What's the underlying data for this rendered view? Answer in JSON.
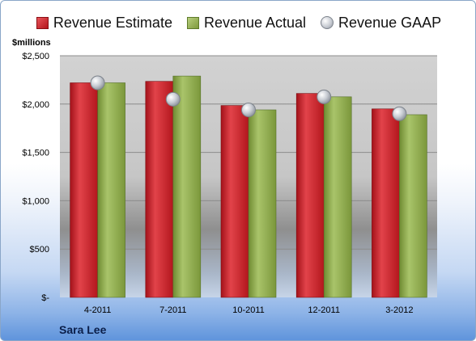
{
  "legend": {
    "estimate": "Revenue Estimate",
    "actual": "Revenue Actual",
    "gaap": "Revenue GAAP"
  },
  "unit_label": "$millions",
  "company": "Sara Lee",
  "colors": {
    "estimate": "#c9252b",
    "actual": "#8eab4f",
    "gaap": "#c0c4cc",
    "plot_bg": "#c8c8c8",
    "grid": "#8c8c8c"
  },
  "chart_data": {
    "type": "bar",
    "categories": [
      "4-2011",
      "7-2011",
      "10-2011",
      "12-2011",
      "3-2012"
    ],
    "series": [
      {
        "name": "Revenue Estimate",
        "values": [
          2220,
          2235,
          1985,
          2110,
          1950
        ]
      },
      {
        "name": "Revenue Actual",
        "values": [
          2220,
          2290,
          1940,
          2075,
          1890
        ]
      },
      {
        "name": "Revenue GAAP",
        "type": "scatter",
        "values": [
          2220,
          2050,
          1940,
          2075,
          1900
        ]
      }
    ],
    "ylim": [
      0,
      2500
    ],
    "yticks": [
      0,
      500,
      1000,
      1500,
      2000,
      2500
    ],
    "ytick_labels": [
      "$-",
      "$500",
      "$1,000",
      "$1,500",
      "$2,000",
      "$2,500"
    ],
    "ylabel": "$millions",
    "grid": true,
    "legend_position": "top"
  }
}
